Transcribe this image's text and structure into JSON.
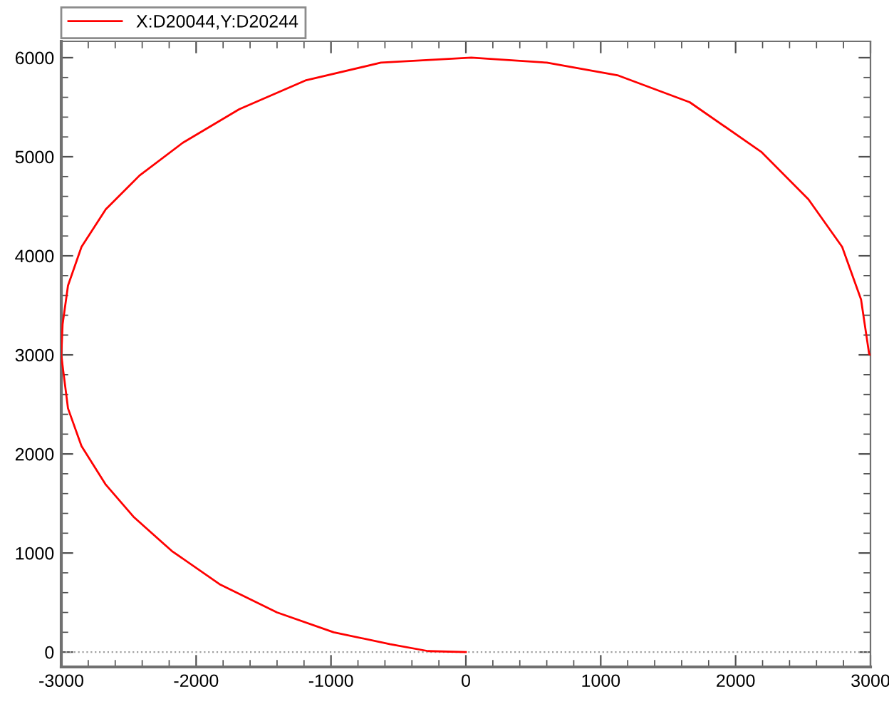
{
  "chart_data": {
    "type": "line",
    "x": [
      0,
      -280,
      -560,
      -980,
      -1400,
      -1820,
      -2180,
      -2460,
      -2670,
      -2850,
      -2950,
      -2990,
      -3000,
      -2990,
      -2950,
      -2850,
      -2670,
      -2420,
      -2100,
      -1680,
      -1190,
      -630,
      40,
      600,
      1130,
      1660,
      2190,
      2540,
      2790,
      2930,
      2990,
      3000
    ],
    "series": [
      {
        "name": "X:D20044,Y:D20244",
        "color": "#ff0000",
        "values": [
          0,
          10,
          80,
          200,
          400,
          680,
          1020,
          1360,
          1690,
          2080,
          2460,
          2890,
          3000,
          3310,
          3700,
          4090,
          4470,
          4810,
          5140,
          5480,
          5770,
          5950,
          6000,
          5950,
          5820,
          5550,
          5050,
          4570,
          4090,
          3560,
          3010,
          3000
        ]
      }
    ],
    "xlim": [
      -3000,
      3000
    ],
    "ylim": [
      -150,
      6165
    ],
    "xticks": [
      -3000,
      {
        "value": -2800,
        "label": null
      },
      {
        "value": -2600,
        "label": null
      },
      {
        "value": -2400,
        "label": null
      },
      {
        "value": -2200,
        "label": null
      },
      -2000,
      {
        "value": -1800,
        "label": null
      },
      {
        "value": -1600,
        "label": null
      },
      {
        "value": -1400,
        "label": null
      },
      {
        "value": -1200,
        "label": null
      },
      -1000,
      {
        "value": -800,
        "label": null
      },
      {
        "value": -600,
        "label": null
      },
      {
        "value": -400,
        "label": null
      },
      {
        "value": -200,
        "label": null
      },
      0,
      {
        "value": 200,
        "label": null
      },
      {
        "value": 400,
        "label": null
      },
      {
        "value": 600,
        "label": null
      },
      {
        "value": 800,
        "label": null
      },
      1000,
      {
        "value": 1200,
        "label": null
      },
      {
        "value": 1400,
        "label": null
      },
      {
        "value": 1600,
        "label": null
      },
      {
        "value": 1800,
        "label": null
      },
      2000,
      {
        "value": 2200,
        "label": null
      },
      {
        "value": 2400,
        "label": null
      },
      {
        "value": 2600,
        "label": null
      },
      {
        "value": 2800,
        "label": null
      },
      3000
    ],
    "yticks": [
      0,
      {
        "value": 200,
        "label": null
      },
      {
        "value": 400,
        "label": null
      },
      {
        "value": 600,
        "label": null
      },
      {
        "value": 800,
        "label": null
      },
      1000,
      {
        "value": 1200,
        "label": null
      },
      {
        "value": 1400,
        "label": null
      },
      {
        "value": 1600,
        "label": null
      },
      {
        "value": 1800,
        "label": null
      },
      2000,
      {
        "value": 2200,
        "label": null
      },
      {
        "value": 2400,
        "label": null
      },
      {
        "value": 2600,
        "label": null
      },
      {
        "value": 2800,
        "label": null
      },
      3000,
      {
        "value": 3200,
        "label": null
      },
      {
        "value": 3400,
        "label": null
      },
      {
        "value": 3600,
        "label": null
      },
      {
        "value": 3800,
        "label": null
      },
      4000,
      {
        "value": 4200,
        "label": null
      },
      {
        "value": 4400,
        "label": null
      },
      {
        "value": 4600,
        "label": null
      },
      {
        "value": 4800,
        "label": null
      },
      5000,
      {
        "value": 5200,
        "label": null
      },
      {
        "value": 5400,
        "label": null
      },
      {
        "value": 5600,
        "label": null
      },
      {
        "value": 5800,
        "label": null
      },
      6000
    ],
    "ref_lines": [
      {
        "axis": "y",
        "value": 0,
        "color": "#a0a0a0",
        "line_style": "dotted"
      }
    ],
    "legend": "top left",
    "grid": false,
    "marker": "none",
    "line_style": "solid"
  }
}
